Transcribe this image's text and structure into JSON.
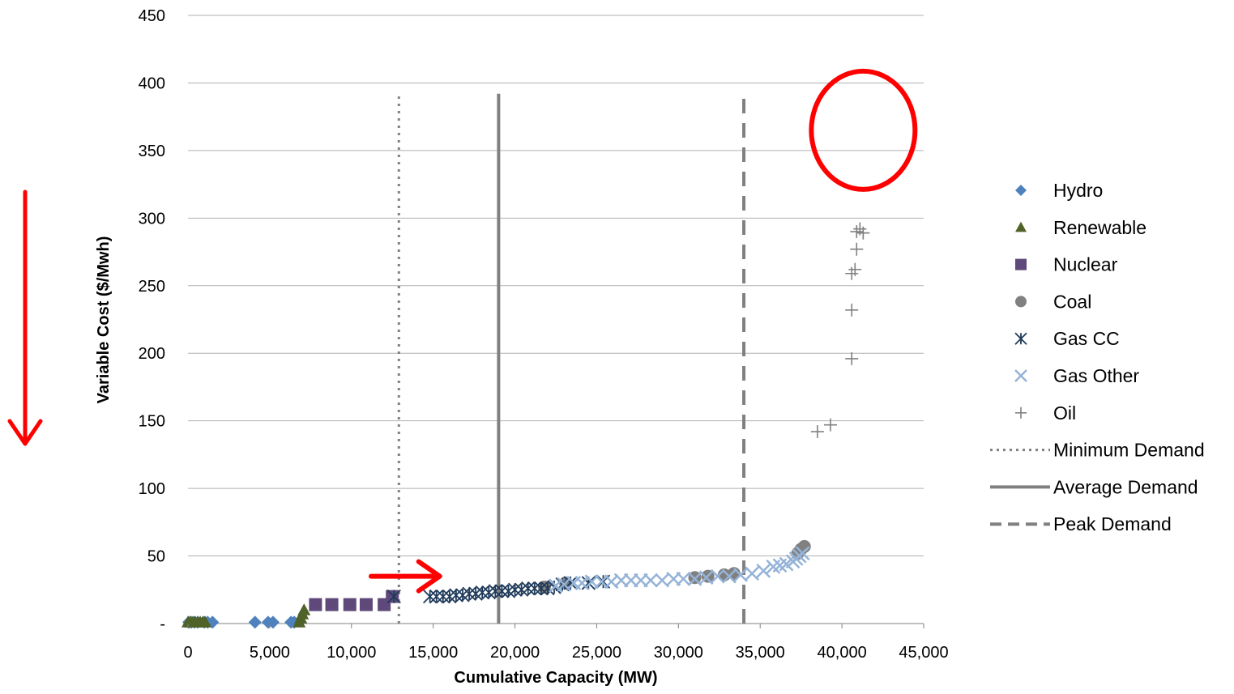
{
  "chart_data": {
    "type": "scatter",
    "title": "",
    "xlabel": "Cumulative Capacity (MW)",
    "ylabel": "Variable Cost ($/Mwh)",
    "xlim": [
      0,
      45000
    ],
    "ylim": [
      0,
      450
    ],
    "grid": "horizontal",
    "legend_position": "right",
    "x_tick_labels": [
      "0",
      "5,000",
      "10,000",
      "15,000",
      "20,000",
      "25,000",
      "30,000",
      "35,000",
      "40,000",
      "45,000"
    ],
    "y_tick_labels": [
      "-",
      "50",
      "100",
      "150",
      "200",
      "250",
      "300",
      "350",
      "400",
      "450"
    ],
    "series": [
      {
        "name": "Hydro",
        "marker": "diamond",
        "color": "#4f81bd",
        "points": [
          [
            50,
            1
          ],
          [
            200,
            1
          ],
          [
            400,
            1
          ],
          [
            600,
            1
          ],
          [
            1000,
            1
          ],
          [
            1200,
            1
          ],
          [
            1500,
            1
          ],
          [
            4100,
            1
          ],
          [
            4900,
            1
          ],
          [
            5200,
            1
          ],
          [
            6300,
            1
          ],
          [
            6500,
            1
          ]
        ]
      },
      {
        "name": "Renewable",
        "marker": "triangle",
        "color": "#4f6228",
        "points": [
          [
            0,
            1
          ],
          [
            150,
            1
          ],
          [
            300,
            1
          ],
          [
            450,
            1
          ],
          [
            600,
            1
          ],
          [
            750,
            1
          ],
          [
            900,
            1
          ],
          [
            1050,
            1
          ],
          [
            6800,
            1
          ],
          [
            6900,
            4
          ],
          [
            7000,
            7
          ],
          [
            7100,
            10
          ]
        ]
      },
      {
        "name": "Nuclear",
        "marker": "square",
        "color": "#5f497a",
        "points": [
          [
            7800,
            14
          ],
          [
            8800,
            14
          ],
          [
            9900,
            14
          ],
          [
            10900,
            14
          ],
          [
            12000,
            14
          ],
          [
            12500,
            20
          ]
        ]
      },
      {
        "name": "Coal",
        "marker": "circle",
        "color": "#808080",
        "points": [
          [
            21800,
            27
          ],
          [
            23100,
            30
          ],
          [
            31000,
            34
          ],
          [
            31800,
            35
          ],
          [
            32800,
            36
          ],
          [
            33400,
            37
          ],
          [
            37300,
            52
          ],
          [
            37500,
            55
          ],
          [
            37700,
            57
          ]
        ]
      },
      {
        "name": "Gas CC",
        "marker": "asterisk",
        "color": "#1f3a5a",
        "points": [
          [
            12600,
            20
          ],
          [
            14800,
            20
          ],
          [
            15200,
            20
          ],
          [
            15600,
            20
          ],
          [
            16000,
            20
          ],
          [
            16400,
            21
          ],
          [
            16800,
            21
          ],
          [
            17200,
            22
          ],
          [
            17600,
            22
          ],
          [
            18000,
            23
          ],
          [
            18400,
            23
          ],
          [
            18800,
            24
          ],
          [
            19200,
            24
          ],
          [
            19600,
            24
          ],
          [
            20000,
            25
          ],
          [
            20400,
            25
          ],
          [
            20800,
            26
          ],
          [
            21200,
            26
          ],
          [
            21600,
            26
          ],
          [
            22000,
            26
          ],
          [
            22400,
            27
          ],
          [
            22900,
            29
          ],
          [
            23400,
            30
          ],
          [
            24500,
            30
          ],
          [
            25400,
            31
          ]
        ]
      },
      {
        "name": "Gas Other",
        "marker": "x",
        "color": "#95b3d7",
        "points": [
          [
            22500,
            28
          ],
          [
            23000,
            29
          ],
          [
            23600,
            30
          ],
          [
            24100,
            30
          ],
          [
            24700,
            31
          ],
          [
            25300,
            31
          ],
          [
            25900,
            31
          ],
          [
            26500,
            32
          ],
          [
            27100,
            32
          ],
          [
            27700,
            32
          ],
          [
            28300,
            32
          ],
          [
            29000,
            32
          ],
          [
            29700,
            33
          ],
          [
            30300,
            33
          ],
          [
            31000,
            33
          ],
          [
            31700,
            34
          ],
          [
            32400,
            35
          ],
          [
            33100,
            35
          ],
          [
            33800,
            36
          ],
          [
            34500,
            37
          ],
          [
            35200,
            39
          ],
          [
            35800,
            42
          ],
          [
            36200,
            43
          ],
          [
            36600,
            44
          ],
          [
            37000,
            46
          ],
          [
            37200,
            48
          ],
          [
            37400,
            50
          ],
          [
            37600,
            52
          ]
        ]
      },
      {
        "name": "Oil",
        "marker": "plus",
        "color": "#808080",
        "points": [
          [
            38500,
            142
          ],
          [
            39300,
            147
          ],
          [
            40600,
            196
          ],
          [
            40600,
            232
          ],
          [
            40600,
            259
          ],
          [
            40800,
            262
          ],
          [
            40900,
            277
          ],
          [
            40900,
            290
          ],
          [
            41100,
            292
          ],
          [
            41300,
            289
          ]
        ]
      }
    ],
    "demand_lines": [
      {
        "name": "Minimum Demand",
        "x": 12900,
        "y_top": 390,
        "style": "dotted",
        "color": "#808080"
      },
      {
        "name": "Average Demand",
        "x": 19000,
        "y_top": 392,
        "style": "solid",
        "color": "#808080"
      },
      {
        "name": "Peak Demand",
        "x": 34000,
        "y_top": 392,
        "style": "dashed",
        "color": "#808080"
      }
    ],
    "annotations": [
      {
        "kind": "red-circle",
        "cx": 41300,
        "cy": 365,
        "note_color": "#ff0000"
      },
      {
        "kind": "red-arrow-right",
        "x_from": 11200,
        "x_to": 15400,
        "y": 35,
        "color": "#ff0000"
      },
      {
        "kind": "red-arrow-down",
        "color": "#ff0000"
      }
    ]
  }
}
